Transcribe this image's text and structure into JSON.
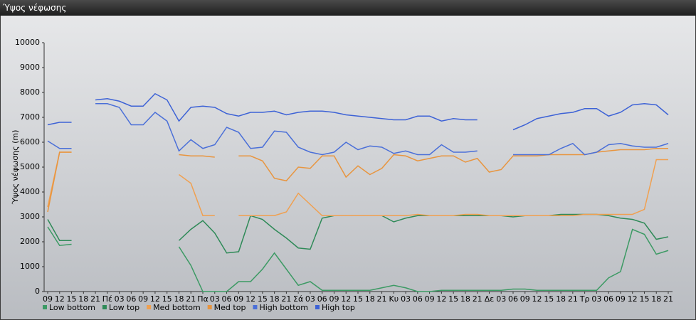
{
  "window_title": "Ύψος νέφωσης",
  "chart_data": {
    "type": "line",
    "y_label": "Ύψος νέφωσης (m)",
    "categories": [
      "09",
      "12",
      "15",
      "18",
      "21",
      "Πέ",
      "03",
      "06",
      "09",
      "12",
      "15",
      "18",
      "21",
      "Πα",
      "03",
      "06",
      "09",
      "12",
      "15",
      "18",
      "21",
      "Σά",
      "03",
      "06",
      "09",
      "12",
      "15",
      "18",
      "21",
      "Κυ",
      "03",
      "06",
      "09",
      "12",
      "15",
      "18",
      "21",
      "Δε",
      "03",
      "06",
      "09",
      "12",
      "15",
      "18",
      "21",
      "Τρ",
      "03",
      "06",
      "09",
      "12",
      "15",
      "18",
      "21"
    ],
    "ylim": [
      0,
      10000
    ],
    "yticks": [
      0,
      1000,
      2000,
      3000,
      4000,
      5000,
      6000,
      7000,
      8000,
      9000,
      10000
    ],
    "grid": false,
    "series": [
      {
        "name": "Low bottom",
        "color": "#3c9a64",
        "values": [
          2600,
          1850,
          1900,
          null,
          null,
          null,
          null,
          null,
          null,
          null,
          null,
          1800,
          1050,
          0,
          0,
          0,
          400,
          400,
          900,
          1550,
          900,
          250,
          400,
          50,
          50,
          50,
          50,
          50,
          150,
          250,
          150,
          0,
          0,
          50,
          50,
          50,
          50,
          50,
          50,
          100,
          100,
          50,
          50,
          50,
          50,
          50,
          50,
          550,
          800,
          2500,
          2300,
          1500,
          1650
        ]
      },
      {
        "name": "Low top",
        "color": "#2f8a58",
        "values": [
          2900,
          2050,
          2050,
          null,
          null,
          null,
          null,
          null,
          null,
          null,
          null,
          2050,
          2500,
          2850,
          2350,
          1550,
          1600,
          3050,
          2900,
          2500,
          2150,
          1750,
          1700,
          2950,
          3050,
          3050,
          3050,
          3050,
          3050,
          2800,
          2950,
          3050,
          3050,
          3050,
          3050,
          3050,
          3050,
          3050,
          3050,
          3000,
          3050,
          3050,
          3050,
          3100,
          3100,
          3100,
          3100,
          3050,
          2950,
          2900,
          2750,
          2100,
          2200
        ]
      },
      {
        "name": "Med bottom",
        "color": "#f0a050",
        "values": [
          3400,
          5600,
          5600,
          null,
          null,
          null,
          null,
          null,
          null,
          null,
          null,
          4700,
          4350,
          3050,
          3050,
          null,
          3050,
          3050,
          3050,
          3050,
          3200,
          3950,
          3500,
          3050,
          3050,
          3050,
          3050,
          3050,
          3050,
          3050,
          3050,
          3100,
          3050,
          3050,
          3050,
          3100,
          3100,
          3050,
          3050,
          3050,
          3050,
          3050,
          3050,
          3050,
          3050,
          3100,
          3100,
          3100,
          3100,
          3100,
          3300,
          5300,
          5300
        ]
      },
      {
        "name": "Med top",
        "color": "#e8953f",
        "values": [
          3200,
          5600,
          5600,
          null,
          null,
          null,
          null,
          null,
          null,
          null,
          null,
          5500,
          5450,
          5450,
          5400,
          null,
          5450,
          5450,
          5250,
          4550,
          4450,
          5000,
          4950,
          5450,
          5450,
          4600,
          5050,
          4700,
          4950,
          5500,
          5450,
          5250,
          5350,
          5450,
          5450,
          5200,
          5350,
          4800,
          4900,
          5450,
          5450,
          5450,
          5500,
          5500,
          5500,
          5500,
          5600,
          5650,
          5700,
          5700,
          5700,
          5750,
          5750
        ]
      },
      {
        "name": "High bottom",
        "color": "#4a6fd8",
        "values": [
          6050,
          5750,
          5750,
          null,
          7550,
          7550,
          7400,
          6700,
          6700,
          7200,
          6850,
          5650,
          6100,
          5750,
          5900,
          6600,
          6400,
          5750,
          5800,
          6450,
          6400,
          5800,
          5600,
          5500,
          5600,
          6000,
          5700,
          5850,
          5800,
          5550,
          5650,
          5500,
          5500,
          5900,
          5600,
          5600,
          5650,
          null,
          null,
          5500,
          5500,
          5500,
          5500,
          5750,
          5950,
          5500,
          5600,
          5900,
          5950,
          5850,
          5800,
          5800,
          5950
        ]
      },
      {
        "name": "High top",
        "color": "#3d62d6",
        "values": [
          6700,
          6800,
          6800,
          null,
          7700,
          7750,
          7650,
          7450,
          7450,
          7950,
          7700,
          6850,
          7400,
          7450,
          7400,
          7150,
          7050,
          7200,
          7200,
          7250,
          7100,
          7200,
          7250,
          7250,
          7200,
          7100,
          7050,
          7000,
          6950,
          6900,
          6900,
          7050,
          7050,
          6850,
          6950,
          6900,
          6900,
          null,
          null,
          6500,
          6700,
          6950,
          7050,
          7150,
          7200,
          7350,
          7350,
          7050,
          7200,
          7500,
          7550,
          7500,
          7100
        ]
      }
    ]
  }
}
